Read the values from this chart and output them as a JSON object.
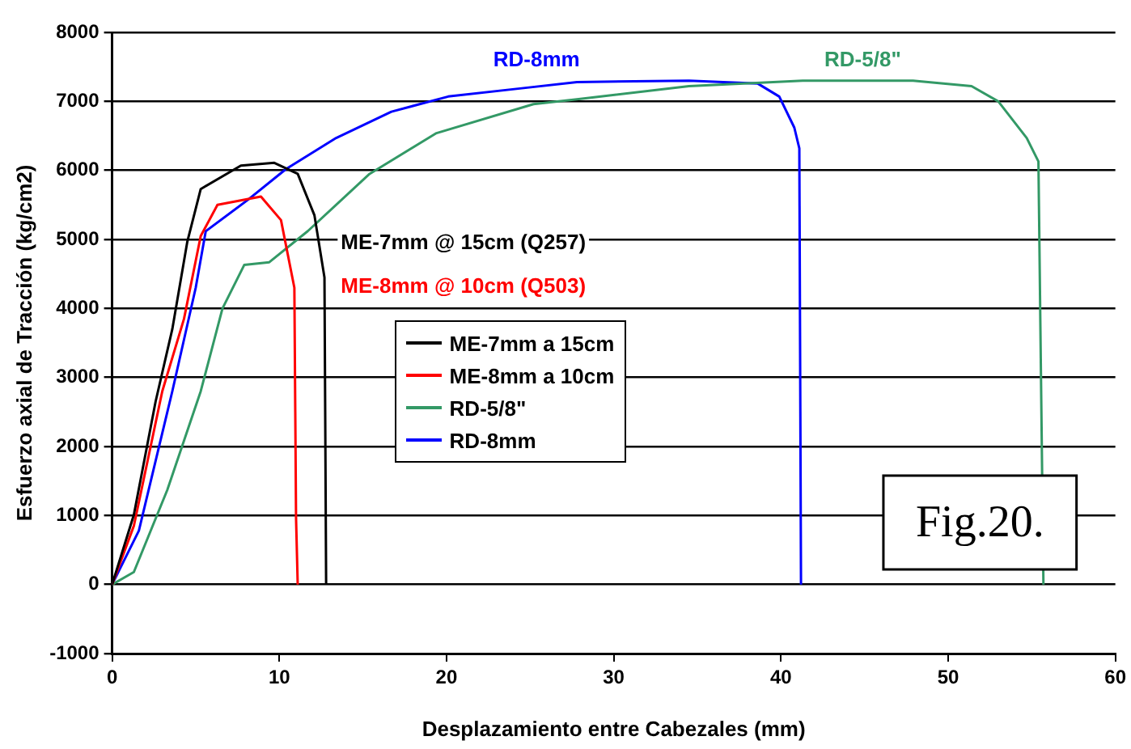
{
  "chart_data": {
    "type": "line",
    "xlabel": "Desplazamiento entre Cabezales (mm)",
    "ylabel": "Esfuerzo axial de Tracción (kg/cm2)",
    "xlim": [
      0,
      60
    ],
    "xticks": [
      0,
      10,
      20,
      30,
      40,
      50,
      60
    ],
    "ylim": [
      -1000,
      8000
    ],
    "yticks": [
      -1000,
      0,
      1000,
      2000,
      3000,
      4000,
      5000,
      6000,
      7000,
      8000
    ],
    "grid": "y",
    "legend": "center",
    "marker": "none",
    "line_style": "solid",
    "series": [
      {
        "name": "ME-7mm a 15cm",
        "color": "#000000",
        "x": [
          0,
          1.3,
          2.6,
          3.6,
          4.5,
          5.3,
          7.7,
          9.7,
          11.1,
          12.1,
          12.7,
          12.8
        ],
        "values": [
          0,
          1010,
          2650,
          3700,
          4970,
          5730,
          6070,
          6110,
          5950,
          5350,
          4450,
          0
        ]
      },
      {
        "name": "ME-8mm a 10cm",
        "color": "#ff0000",
        "x": [
          0,
          1.3,
          3,
          4.3,
          5.3,
          6.3,
          8.9,
          10.1,
          10.9,
          11,
          11.1
        ],
        "values": [
          0,
          850,
          2800,
          3850,
          5050,
          5500,
          5620,
          5280,
          4300,
          970,
          0
        ]
      },
      {
        "name": "RD-5/8\"",
        "color": "#339966",
        "x": [
          0,
          1.3,
          3.3,
          5.3,
          6.6,
          7.9,
          9.4,
          11.7,
          15.4,
          19.4,
          25.2,
          27.8,
          34.5,
          41.3,
          47.9,
          51.4,
          53,
          54.7,
          55.4,
          55.7
        ],
        "values": [
          0,
          180,
          1370,
          2800,
          4000,
          4630,
          4670,
          5120,
          5950,
          6540,
          6960,
          7030,
          7220,
          7300,
          7300,
          7220,
          7000,
          6470,
          6130,
          0
        ]
      },
      {
        "name": "RD-8mm",
        "color": "#0000ff",
        "x": [
          0,
          1.6,
          3.6,
          5,
          5.6,
          8.1,
          10.4,
          13.4,
          16.7,
          20.1,
          24.5,
          27.8,
          34.5,
          38.6,
          39.9,
          40.8,
          41.1,
          41.2
        ],
        "values": [
          0,
          780,
          2800,
          4300,
          5120,
          5570,
          6020,
          6470,
          6850,
          7070,
          7190,
          7280,
          7300,
          7260,
          7070,
          6620,
          6320,
          0
        ]
      }
    ],
    "annotations": [
      "ME-7mm @ 15cm (Q257)",
      "ME-8mm @ 10cm (Q503)",
      "RD-5/8\"",
      "RD-8mm",
      "Fig.20."
    ]
  }
}
